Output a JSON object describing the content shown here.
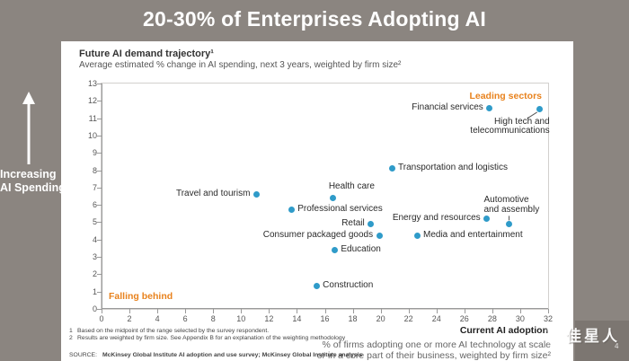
{
  "page": {
    "title": "20-30% of Enterprises Adopting AI",
    "left_rail": {
      "line1": "Increasing",
      "line2": "AI Spending"
    },
    "watermark": {
      "text": "佳星人",
      "page_number": "4"
    }
  },
  "chart_data": {
    "type": "scatter",
    "title": "Future AI demand trajectory¹",
    "subtitle": "Average estimated % change in AI spending, next 3 years, weighted by firm size²",
    "xlabel": "Current AI adoption",
    "xlabel_sub": [
      "% of firms adopting one or more AI technology at scale",
      "or in a core part of their business, weighted by firm size²"
    ],
    "xlim": [
      0,
      32
    ],
    "ylim": [
      0,
      13
    ],
    "x_ticks": [
      0,
      2,
      4,
      6,
      8,
      10,
      12,
      14,
      16,
      18,
      20,
      22,
      24,
      26,
      28,
      30,
      32
    ],
    "y_ticks": [
      0,
      1,
      2,
      3,
      4,
      5,
      6,
      7,
      8,
      9,
      10,
      11,
      12,
      13
    ],
    "grid": false,
    "annotations": {
      "top_right": "Leading sectors",
      "bottom_left": "Falling behind"
    },
    "colors": {
      "dot": "#2f9bc9",
      "accent_orange": "#e8821d",
      "page_bg": "#8b8580"
    },
    "points": [
      {
        "name": "Financial services",
        "x": 27.8,
        "y": 11.6,
        "label_side": "left"
      },
      {
        "name": "High tech and telecommunications",
        "x": 31.4,
        "y": 11.5,
        "label_side": "below-stack",
        "label_lines": [
          "High tech and",
          "telecommunications"
        ],
        "connector": "diagonal"
      },
      {
        "name": "Transportation and logistics",
        "x": 20.8,
        "y": 8.1,
        "label_side": "right"
      },
      {
        "name": "Travel and tourism",
        "x": 11.1,
        "y": 6.6,
        "label_side": "left"
      },
      {
        "name": "Health care",
        "x": 16.6,
        "y": 6.4,
        "label_side": "above"
      },
      {
        "name": "Professional services",
        "x": 13.6,
        "y": 5.7,
        "label_side": "right"
      },
      {
        "name": "Energy and resources",
        "x": 27.6,
        "y": 5.2,
        "label_side": "left"
      },
      {
        "name": "Automotive and assembly",
        "x": 29.2,
        "y": 4.9,
        "label_side": "above-stack",
        "label_lines": [
          "Automotive",
          "and assembly"
        ],
        "connector": "vertical"
      },
      {
        "name": "Retail",
        "x": 19.3,
        "y": 4.9,
        "label_side": "left"
      },
      {
        "name": "Consumer packaged goods",
        "x": 19.9,
        "y": 4.2,
        "label_side": "left"
      },
      {
        "name": "Media and entertainment",
        "x": 22.6,
        "y": 4.2,
        "label_side": "right"
      },
      {
        "name": "Education",
        "x": 16.7,
        "y": 3.4,
        "label_side": "right"
      },
      {
        "name": "Construction",
        "x": 15.4,
        "y": 1.3,
        "label_side": "right"
      }
    ]
  },
  "footnotes": [
    {
      "num": "1",
      "text": "Based on the midpoint of the range selected by the survey respondent."
    },
    {
      "num": "2",
      "text": "Results are weighted by firm size. See Appendix B for an explanation of the weighting methodology"
    }
  ],
  "source": {
    "label": "SOURCE:",
    "text": "McKinsey Global Institute AI adoption and use survey; McKinsey Global Institute analysis"
  }
}
